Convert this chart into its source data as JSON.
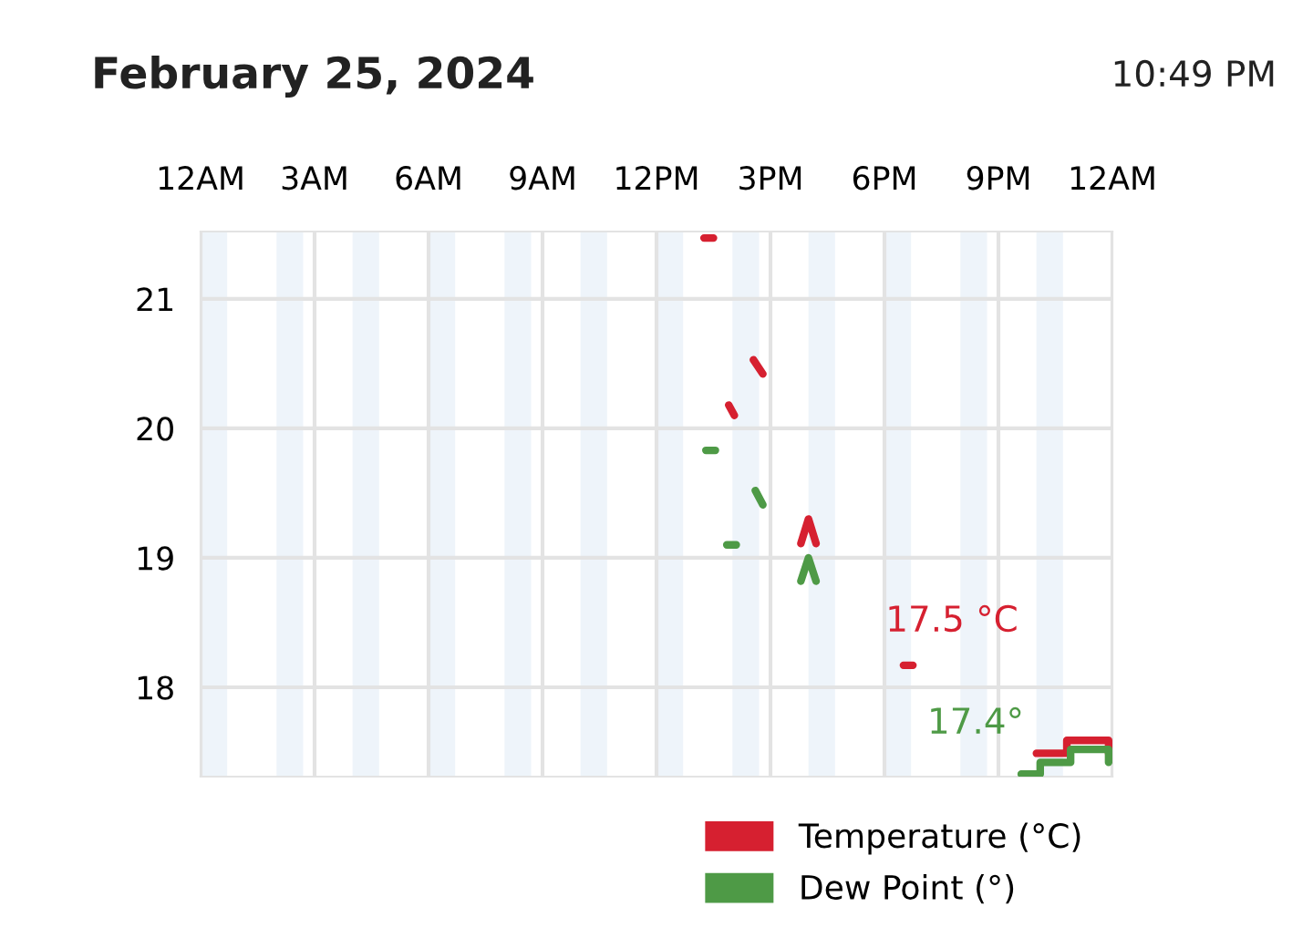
{
  "chart_data": {
    "type": "line",
    "title": "February 25, 2024",
    "xlim": [
      "2024-02-25T00:00",
      "2024-02-26T00:00"
    ],
    "xticks": [
      {
        "value": "2024-02-25T00:00",
        "label": "12AM"
      },
      {
        "value": "2024-02-25T03:00",
        "label": "3AM"
      },
      {
        "value": "2024-02-25T06:00",
        "label": "6AM"
      },
      {
        "value": "2024-02-25T09:00",
        "label": "9AM"
      },
      {
        "value": "2024-02-25T12:00",
        "label": "12PM"
      },
      {
        "value": "2024-02-25T15:00",
        "label": "3PM"
      },
      {
        "value": "2024-02-25T18:00",
        "label": "6PM"
      },
      {
        "value": "2024-02-25T21:00",
        "label": "9PM"
      },
      {
        "value": "2024-02-26T00:00",
        "label": "12AM"
      }
    ],
    "ylim": [
      17.31,
      21.52
    ],
    "yticks": [
      18,
      19,
      20,
      21
    ],
    "grid": true,
    "legend": "bottom right",
    "series": [
      {
        "name": "Temperature (°C)",
        "color": "#d62030",
        "x": [
          "2024-02-25T13:15",
          "2024-02-25T13:30",
          "2024-02-25T13:36",
          "2024-02-25T13:54",
          "2024-02-25T14:03",
          "2024-02-25T14:18",
          "2024-02-25T14:33",
          "2024-02-25T14:48",
          "2024-02-25T15:18",
          "2024-02-25T15:48",
          "2024-02-25T16:00",
          "2024-02-25T16:12",
          "2024-02-25T17:30",
          "2024-02-25T18:30",
          "2024-02-25T18:45",
          "2024-02-25T20:30",
          "2024-02-25T22:00",
          "2024-02-25T22:48",
          "2024-02-25T22:48",
          "2024-02-25T23:54",
          "2024-02-25T23:54"
        ],
        "values": [
          21.47,
          21.47,
          null,
          20.18,
          20.1,
          null,
          20.53,
          20.42,
          null,
          19.11,
          19.3,
          19.11,
          null,
          18.17,
          18.17,
          null,
          17.49,
          17.49,
          17.59,
          17.59,
          17.49
        ]
      },
      {
        "name": "Dew Point (°)",
        "color": "#4e9a46",
        "x": [
          "2024-02-25T13:18",
          "2024-02-25T13:33",
          "2024-02-25T13:42",
          "2024-02-25T13:51",
          "2024-02-25T14:06",
          "2024-02-25T14:18",
          "2024-02-25T14:36",
          "2024-02-25T14:48",
          "2024-02-25T15:18",
          "2024-02-25T15:48",
          "2024-02-25T16:00",
          "2024-02-25T16:12",
          "2024-02-25T20:30",
          "2024-02-25T21:36",
          "2024-02-25T22:06",
          "2024-02-25T22:06",
          "2024-02-25T22:54",
          "2024-02-25T22:54",
          "2024-02-25T23:54",
          "2024-02-25T23:54"
        ],
        "values": [
          19.83,
          19.83,
          null,
          19.1,
          19.1,
          null,
          19.52,
          19.41,
          null,
          18.82,
          19.0,
          18.82,
          null,
          17.33,
          17.33,
          17.42,
          17.42,
          17.52,
          17.52,
          17.42
        ]
      }
    ],
    "bands": [
      {
        "axis": "x",
        "from": "2024-02-25T00:00",
        "to": "2024-02-25T00:42",
        "color": "#eef4fa"
      },
      {
        "axis": "x",
        "from": "2024-02-25T02:00",
        "to": "2024-02-25T02:42",
        "color": "#eef4fa"
      },
      {
        "axis": "x",
        "from": "2024-02-25T04:00",
        "to": "2024-02-25T04:42",
        "color": "#eef4fa"
      },
      {
        "axis": "x",
        "from": "2024-02-25T06:00",
        "to": "2024-02-25T06:42",
        "color": "#eef4fa"
      },
      {
        "axis": "x",
        "from": "2024-02-25T08:00",
        "to": "2024-02-25T08:42",
        "color": "#eef4fa"
      },
      {
        "axis": "x",
        "from": "2024-02-25T10:00",
        "to": "2024-02-25T10:42",
        "color": "#eef4fa"
      },
      {
        "axis": "x",
        "from": "2024-02-25T12:00",
        "to": "2024-02-25T12:42",
        "color": "#eef4fa"
      },
      {
        "axis": "x",
        "from": "2024-02-25T14:00",
        "to": "2024-02-25T14:42",
        "color": "#eef4fa"
      },
      {
        "axis": "x",
        "from": "2024-02-25T16:00",
        "to": "2024-02-25T16:42",
        "color": "#eef4fa"
      },
      {
        "axis": "x",
        "from": "2024-02-25T18:00",
        "to": "2024-02-25T18:42",
        "color": "#eef4fa"
      },
      {
        "axis": "x",
        "from": "2024-02-25T20:00",
        "to": "2024-02-25T20:42",
        "color": "#eef4fa"
      },
      {
        "axis": "x",
        "from": "2024-02-25T22:00",
        "to": "2024-02-25T22:42",
        "color": "#eef4fa"
      }
    ],
    "annotations": [
      "10:49 PM",
      "17.5 °C",
      "17.4°"
    ]
  }
}
